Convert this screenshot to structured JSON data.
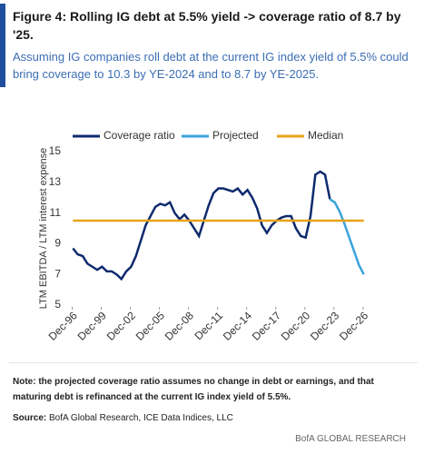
{
  "title": "Figure 4: Rolling IG debt at 5.5% yield -> coverage ratio of 8.7 by '25.",
  "subtitle": "Assuming IG companies roll debt at the current IG index yield of 5.5% could bring coverage to 10.3 by YE-2024 and to 8.7 by YE-2025.",
  "chart_data": {
    "type": "line",
    "ylabel": "LTM EBITDA / LTM interest expense",
    "x": [
      1997,
      1997.5,
      1998,
      1998.5,
      1999,
      1999.5,
      2000,
      2000.5,
      2001,
      2001.5,
      2002,
      2002.5,
      2003,
      2003.5,
      2004,
      2004.5,
      2005,
      2005.5,
      2006,
      2006.5,
      2007,
      2007.5,
      2008,
      2008.5,
      2009,
      2009.5,
      2010,
      2010.5,
      2011,
      2011.5,
      2012,
      2012.5,
      2013,
      2013.5,
      2014,
      2014.5,
      2015,
      2015.5,
      2016,
      2016.5,
      2017,
      2017.5,
      2018,
      2018.5,
      2019,
      2019.5,
      2020,
      2020.5,
      2021,
      2021.5,
      2022,
      2022.5,
      2023,
      2023.5,
      2024,
      2024.5,
      2025,
      2025.5,
      2026,
      2026.5,
      2027
    ],
    "series": [
      {
        "name": "Coverage ratio",
        "color": "#0d2a6e",
        "values": [
          8.7,
          8.3,
          8.2,
          7.7,
          7.5,
          7.3,
          7.5,
          7.2,
          7.2,
          7.0,
          6.7,
          7.2,
          7.5,
          8.2,
          9.2,
          10.2,
          10.8,
          11.4,
          11.6,
          11.5,
          11.7,
          11.0,
          10.6,
          10.9,
          10.5,
          10.0,
          9.5,
          10.5,
          11.5,
          12.3,
          12.6,
          12.6,
          12.5,
          12.4,
          12.6,
          12.2,
          12.5,
          12.0,
          11.3,
          10.2,
          9.7,
          10.2,
          10.5,
          10.7,
          10.8,
          10.8,
          10.0,
          9.5,
          9.4,
          10.8,
          13.5,
          13.7,
          13.5,
          11.9,
          null,
          null,
          null,
          null,
          null,
          null,
          null
        ]
      },
      {
        "name": "Projected",
        "color": "#3aa3dc",
        "values": [
          null,
          null,
          null,
          null,
          null,
          null,
          null,
          null,
          null,
          null,
          null,
          null,
          null,
          null,
          null,
          null,
          null,
          null,
          null,
          null,
          null,
          null,
          null,
          null,
          null,
          null,
          null,
          null,
          null,
          null,
          null,
          null,
          null,
          null,
          null,
          null,
          null,
          null,
          null,
          null,
          null,
          null,
          null,
          null,
          null,
          null,
          null,
          null,
          null,
          null,
          null,
          null,
          null,
          11.9,
          11.7,
          11.1,
          10.3,
          9.4,
          8.5,
          7.6,
          7.0
        ]
      },
      {
        "name": "Median",
        "color": "#e8a317",
        "value": 10.5
      }
    ],
    "xlim": [
      1996.5,
      2027.4
    ],
    "xticks": [
      {
        "value": 1996.92,
        "label": "Dec-96"
      },
      {
        "value": 1999.92,
        "label": "Dec-99"
      },
      {
        "value": 2002.92,
        "label": "Dec-02"
      },
      {
        "value": 2005.92,
        "label": "Dec-05"
      },
      {
        "value": 2008.92,
        "label": "Dec-08"
      },
      {
        "value": 2011.92,
        "label": "Dec-11"
      },
      {
        "value": 2014.92,
        "label": "Dec-14"
      },
      {
        "value": 2017.92,
        "label": "Dec-17"
      },
      {
        "value": 2020.92,
        "label": "Dec-20"
      },
      {
        "value": 2023.92,
        "label": "Dec-23"
      },
      {
        "value": 2026.92,
        "label": "Dec-26"
      }
    ],
    "ylim": [
      5,
      15
    ],
    "yticks": [
      5,
      7,
      9,
      11,
      13,
      15
    ]
  },
  "note": "Note: the projected coverage ratio assumes no change in debt or earnings, and that maturing debt is refinanced at the current IG index yield of 5.5%.",
  "source_label": "Source:",
  "source": "BofA Global Research, ICE Data Indices, LLC",
  "brand": "BofA GLOBAL RESEARCH"
}
